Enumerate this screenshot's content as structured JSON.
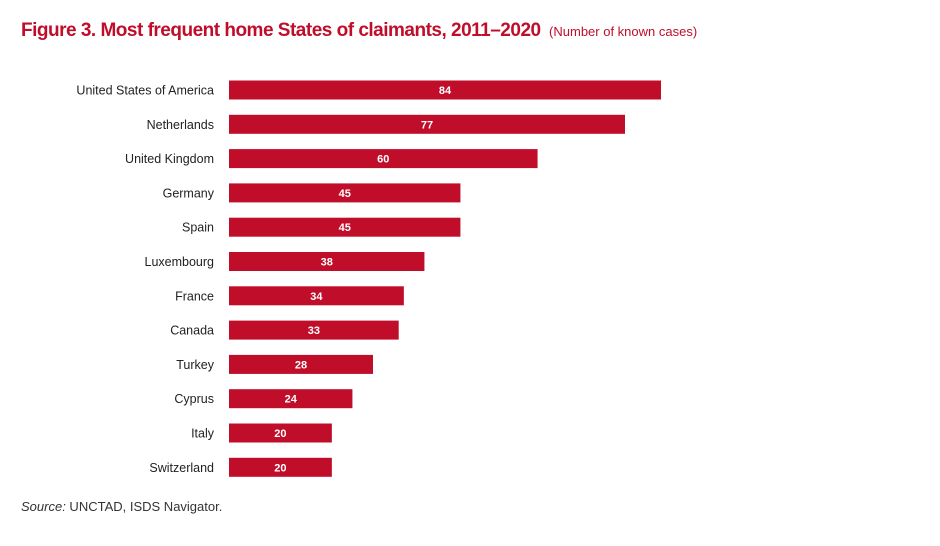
{
  "colors": {
    "accent": "#c00d2a",
    "bar": "#c00d2a",
    "bar_label": "#ffffff",
    "text": "#222222"
  },
  "chart_data": {
    "type": "bar",
    "orientation": "horizontal",
    "title": "Figure 3. Most frequent home States of claimants, 2011–2020",
    "subtitle": "(Number of known cases)",
    "categories": [
      "United States of America",
      "Netherlands",
      "United Kingdom",
      "Germany",
      "Spain",
      "Luxembourg",
      "France",
      "Canada",
      "Turkey",
      "Cyprus",
      "Italy",
      "Switzerland"
    ],
    "values": [
      84,
      77,
      60,
      45,
      45,
      38,
      34,
      33,
      28,
      24,
      20,
      20
    ],
    "data_labels": "inside-bar",
    "grid": false,
    "legend": "none",
    "xlim": [
      0,
      84
    ]
  },
  "source": {
    "prefix": "Source:",
    "text": " UNCTAD, ISDS Navigator."
  }
}
